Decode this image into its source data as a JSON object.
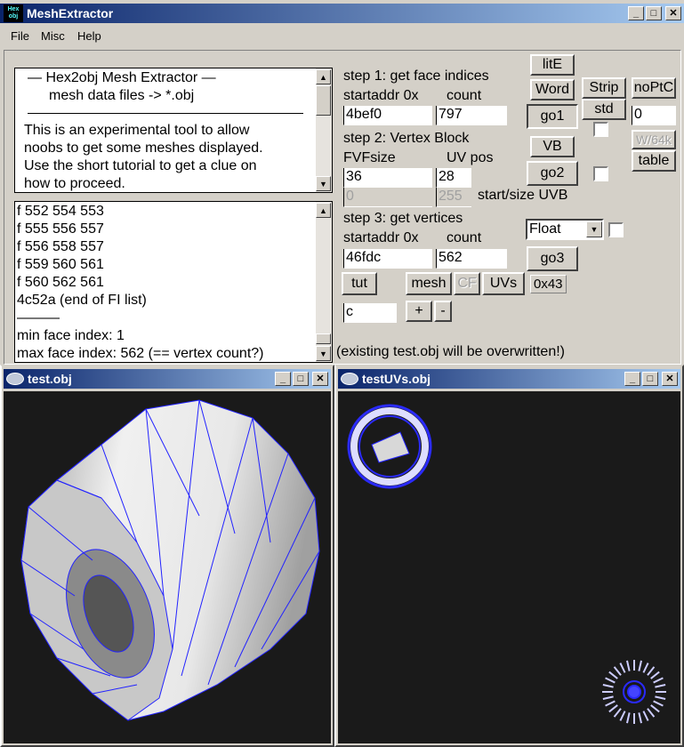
{
  "main_window": {
    "title": "MeshExtractor",
    "icon_text": "Hex obj"
  },
  "menu": {
    "items": [
      "File",
      "Misc",
      "Help"
    ]
  },
  "info_box": {
    "lines": [
      "—   Hex2obj Mesh Extractor   —",
      "mesh data files -> *.obj",
      "This is an experimental tool to allow",
      "noobs to get some meshes displayed.",
      "Use the short tutorial to get a clue on",
      "how to proceed."
    ]
  },
  "log_box": {
    "lines": [
      "f  552 554 553",
      "f  555 556 557",
      "f  556 558 557",
      "f  559 560 561",
      "f  560 562 561",
      "4c52a (end of FI list)",
      "———",
      "min face index: 1",
      "max face index: 562 (== vertex count?)"
    ]
  },
  "step1": {
    "title": "step 1: get face indices",
    "startaddr_label": "startaddr 0x",
    "count_label": "count",
    "startaddr": "4bef0",
    "count": "797"
  },
  "step2": {
    "title": "step 2: Vertex Block",
    "fvf_label": "FVFsize",
    "uv_label": "UV pos",
    "fvfsize": "36",
    "uvpos": "28",
    "uvb_start": "0",
    "uvb_size": "255",
    "uvb_label": "start/size UVB"
  },
  "step3": {
    "title": "step 3: get vertices",
    "startaddr_label": "startaddr 0x",
    "count_label": "count",
    "startaddr": "46fdc",
    "count": "562"
  },
  "buttons": {
    "lite": "litE",
    "word": "Word",
    "go1": "go1",
    "strip": "Strip",
    "std": "std",
    "noptc": "noPtC",
    "vb": "VB",
    "go2": "go2",
    "w64k": "W/64k",
    "table": "table",
    "go3": "go3",
    "tut": "tut",
    "mesh": "mesh",
    "cf": "CF",
    "uvs": "UVs",
    "hex": "0x43",
    "plus": "+",
    "minus": "-"
  },
  "noptc_value": "0",
  "float_select": {
    "value": "Float"
  },
  "c_field": "c",
  "status_text": "(existing test.obj will be overwritten!)",
  "test_window": {
    "title": "test.obj"
  },
  "uv_window": {
    "title": "testUVs.obj"
  },
  "colors": {
    "titlebar": "#0a246a",
    "wire": "#1a1aff",
    "viewport_bg": "#1a1a1a"
  }
}
